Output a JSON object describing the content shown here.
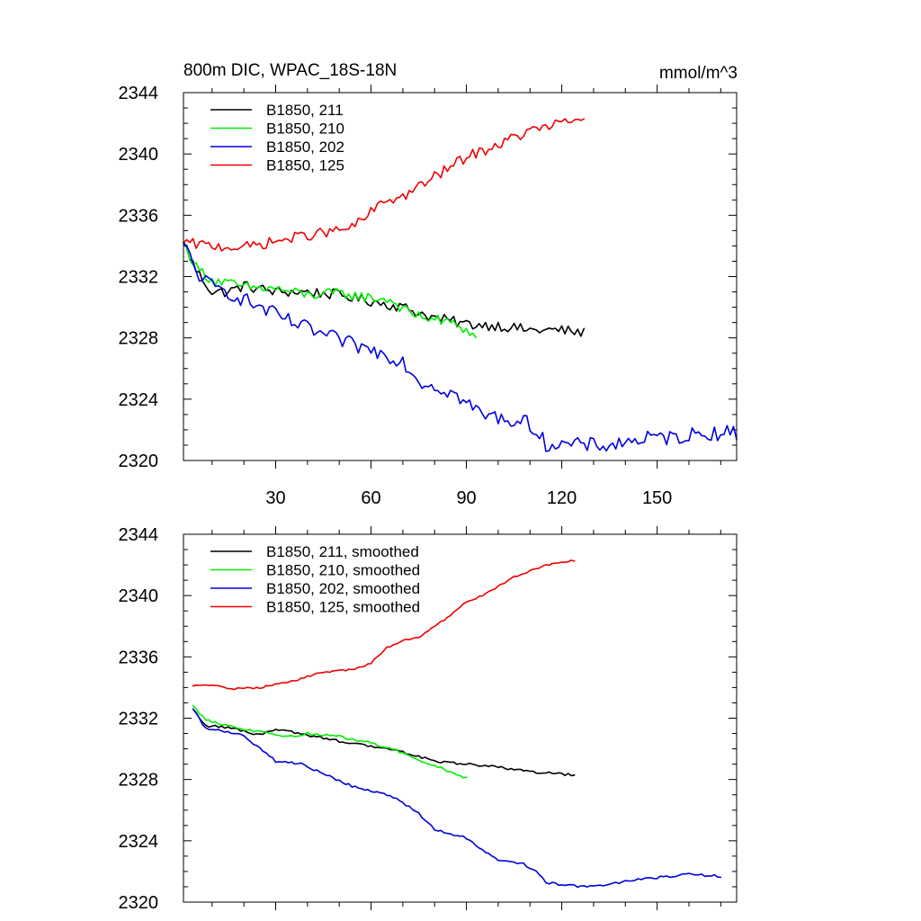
{
  "chart_data": [
    {
      "type": "line",
      "title_left": "800m DIC, WPAC_18S-18N",
      "title_right": "mmol/m^3",
      "xlim": [
        1,
        175
      ],
      "ylim": [
        2320,
        2344
      ],
      "x_ticks": [
        30,
        60,
        90,
        120,
        150
      ],
      "x_tick_labels": [
        "30",
        "60",
        "90",
        "120",
        "150"
      ],
      "y_ticks": [
        2320,
        2324,
        2328,
        2332,
        2336,
        2340,
        2344
      ],
      "y_tick_labels": [
        "2320",
        "2324",
        "2328",
        "2332",
        "2336",
        "2340",
        "2344"
      ],
      "legend_position": "top-left",
      "series": [
        {
          "name": "B1850, 211",
          "color": "#000000",
          "length": 127,
          "noise": 0.35,
          "anchors": [
            [
              1,
              2334.2
            ],
            [
              5,
              2332.4
            ],
            [
              10,
              2331.0
            ],
            [
              15,
              2331.0
            ],
            [
              20,
              2331.4
            ],
            [
              30,
              2331.0
            ],
            [
              40,
              2331.0
            ],
            [
              50,
              2330.8
            ],
            [
              60,
              2330.4
            ],
            [
              70,
              2330.0
            ],
            [
              80,
              2329.3
            ],
            [
              90,
              2328.9
            ],
            [
              100,
              2328.8
            ],
            [
              110,
              2328.5
            ],
            [
              120,
              2328.5
            ],
            [
              127,
              2328.3
            ]
          ]
        },
        {
          "name": "B1850, 210",
          "color": "#00ee00",
          "length": 93,
          "noise": 0.35,
          "anchors": [
            [
              1,
              2334.2
            ],
            [
              5,
              2332.6
            ],
            [
              10,
              2331.8
            ],
            [
              20,
              2331.3
            ],
            [
              30,
              2331.2
            ],
            [
              40,
              2330.8
            ],
            [
              50,
              2330.9
            ],
            [
              60,
              2330.6
            ],
            [
              66,
              2330.5
            ],
            [
              72,
              2329.6
            ],
            [
              80,
              2329.2
            ],
            [
              88,
              2328.8
            ],
            [
              93,
              2328.0
            ]
          ]
        },
        {
          "name": "B1850, 202",
          "color": "#0000dd",
          "length": 175,
          "noise": 0.5,
          "anchors": [
            [
              1,
              2334.2
            ],
            [
              5,
              2332.3
            ],
            [
              10,
              2331.3
            ],
            [
              15,
              2331.0
            ],
            [
              25,
              2330.0
            ],
            [
              35,
              2329.0
            ],
            [
              45,
              2328.2
            ],
            [
              55,
              2327.5
            ],
            [
              65,
              2326.9
            ],
            [
              70,
              2326.5
            ],
            [
              75,
              2325.2
            ],
            [
              85,
              2324.5
            ],
            [
              95,
              2323.0
            ],
            [
              105,
              2322.6
            ],
            [
              110,
              2322.4
            ],
            [
              115,
              2321.1
            ],
            [
              125,
              2321.0
            ],
            [
              135,
              2321.0
            ],
            [
              145,
              2321.4
            ],
            [
              155,
              2321.5
            ],
            [
              165,
              2321.8
            ],
            [
              175,
              2321.8
            ]
          ]
        },
        {
          "name": "B1850, 125",
          "color": "#ee0000",
          "length": 127,
          "noise": 0.35,
          "anchors": [
            [
              1,
              2334.2
            ],
            [
              10,
              2334.0
            ],
            [
              20,
              2333.9
            ],
            [
              30,
              2334.3
            ],
            [
              40,
              2334.7
            ],
            [
              50,
              2335.0
            ],
            [
              55,
              2335.3
            ],
            [
              60,
              2336.2
            ],
            [
              65,
              2337.0
            ],
            [
              70,
              2337.2
            ],
            [
              80,
              2338.5
            ],
            [
              90,
              2339.8
            ],
            [
              100,
              2340.6
            ],
            [
              110,
              2341.5
            ],
            [
              120,
              2342.0
            ],
            [
              127,
              2342.3
            ]
          ]
        }
      ]
    },
    {
      "type": "line",
      "xlim": [
        1,
        175
      ],
      "ylim": [
        2320,
        2344
      ],
      "y_ticks": [
        2320,
        2324,
        2328,
        2332,
        2336,
        2340,
        2344
      ],
      "y_tick_labels": [
        "2320",
        "2324",
        "2328",
        "2332",
        "2336",
        "2340",
        "2344"
      ],
      "x_ticks": [
        30,
        60,
        90,
        120,
        150
      ],
      "legend_position": "top-left",
      "series": [
        {
          "name": "B1850, 211, smoothed",
          "color": "#000000",
          "length": 124,
          "x_start": 4,
          "noise": 0.08,
          "anchors": [
            [
              4,
              2332.6
            ],
            [
              8,
              2331.5
            ],
            [
              15,
              2331.4
            ],
            [
              25,
              2330.9
            ],
            [
              30,
              2331.3
            ],
            [
              40,
              2330.9
            ],
            [
              50,
              2330.5
            ],
            [
              60,
              2330.2
            ],
            [
              70,
              2329.8
            ],
            [
              80,
              2329.2
            ],
            [
              90,
              2329.0
            ],
            [
              100,
              2328.8
            ],
            [
              110,
              2328.5
            ],
            [
              124,
              2328.3
            ]
          ]
        },
        {
          "name": "B1850, 210, smoothed",
          "color": "#00ee00",
          "length": 90,
          "x_start": 4,
          "noise": 0.08,
          "anchors": [
            [
              4,
              2332.8
            ],
            [
              8,
              2331.9
            ],
            [
              15,
              2331.5
            ],
            [
              25,
              2331.1
            ],
            [
              35,
              2330.8
            ],
            [
              40,
              2331.0
            ],
            [
              50,
              2330.8
            ],
            [
              60,
              2330.4
            ],
            [
              68,
              2329.9
            ],
            [
              75,
              2329.3
            ],
            [
              80,
              2328.9
            ],
            [
              90,
              2328.1
            ]
          ]
        },
        {
          "name": "B1850, 202, smoothed",
          "color": "#0000dd",
          "length": 170,
          "x_start": 4,
          "noise": 0.08,
          "anchors": [
            [
              4,
              2332.6
            ],
            [
              8,
              2331.3
            ],
            [
              15,
              2331.1
            ],
            [
              20,
              2330.9
            ],
            [
              25,
              2330.0
            ],
            [
              30,
              2329.2
            ],
            [
              38,
              2329.0
            ],
            [
              45,
              2328.4
            ],
            [
              50,
              2327.9
            ],
            [
              55,
              2327.5
            ],
            [
              65,
              2327.0
            ],
            [
              70,
              2326.5
            ],
            [
              75,
              2325.8
            ],
            [
              80,
              2324.7
            ],
            [
              90,
              2324.2
            ],
            [
              95,
              2323.4
            ],
            [
              100,
              2322.8
            ],
            [
              108,
              2322.5
            ],
            [
              112,
              2322.0
            ],
            [
              115,
              2321.3
            ],
            [
              120,
              2321.1
            ],
            [
              130,
              2321.0
            ],
            [
              135,
              2321.1
            ],
            [
              140,
              2321.4
            ],
            [
              150,
              2321.6
            ],
            [
              160,
              2321.8
            ],
            [
              170,
              2321.7
            ]
          ]
        },
        {
          "name": "B1850, 125, smoothed",
          "color": "#ee0000",
          "length": 124,
          "x_start": 4,
          "noise": 0.06,
          "anchors": [
            [
              4,
              2334.1
            ],
            [
              10,
              2334.2
            ],
            [
              15,
              2333.9
            ],
            [
              25,
              2334.0
            ],
            [
              35,
              2334.4
            ],
            [
              40,
              2334.7
            ],
            [
              45,
              2335.0
            ],
            [
              55,
              2335.2
            ],
            [
              60,
              2335.6
            ],
            [
              65,
              2336.6
            ],
            [
              70,
              2337.1
            ],
            [
              75,
              2337.3
            ],
            [
              80,
              2338.0
            ],
            [
              85,
              2338.7
            ],
            [
              90,
              2339.6
            ],
            [
              95,
              2340.0
            ],
            [
              100,
              2340.6
            ],
            [
              105,
              2341.2
            ],
            [
              110,
              2341.6
            ],
            [
              115,
              2342.0
            ],
            [
              124,
              2342.3
            ]
          ]
        }
      ]
    }
  ]
}
